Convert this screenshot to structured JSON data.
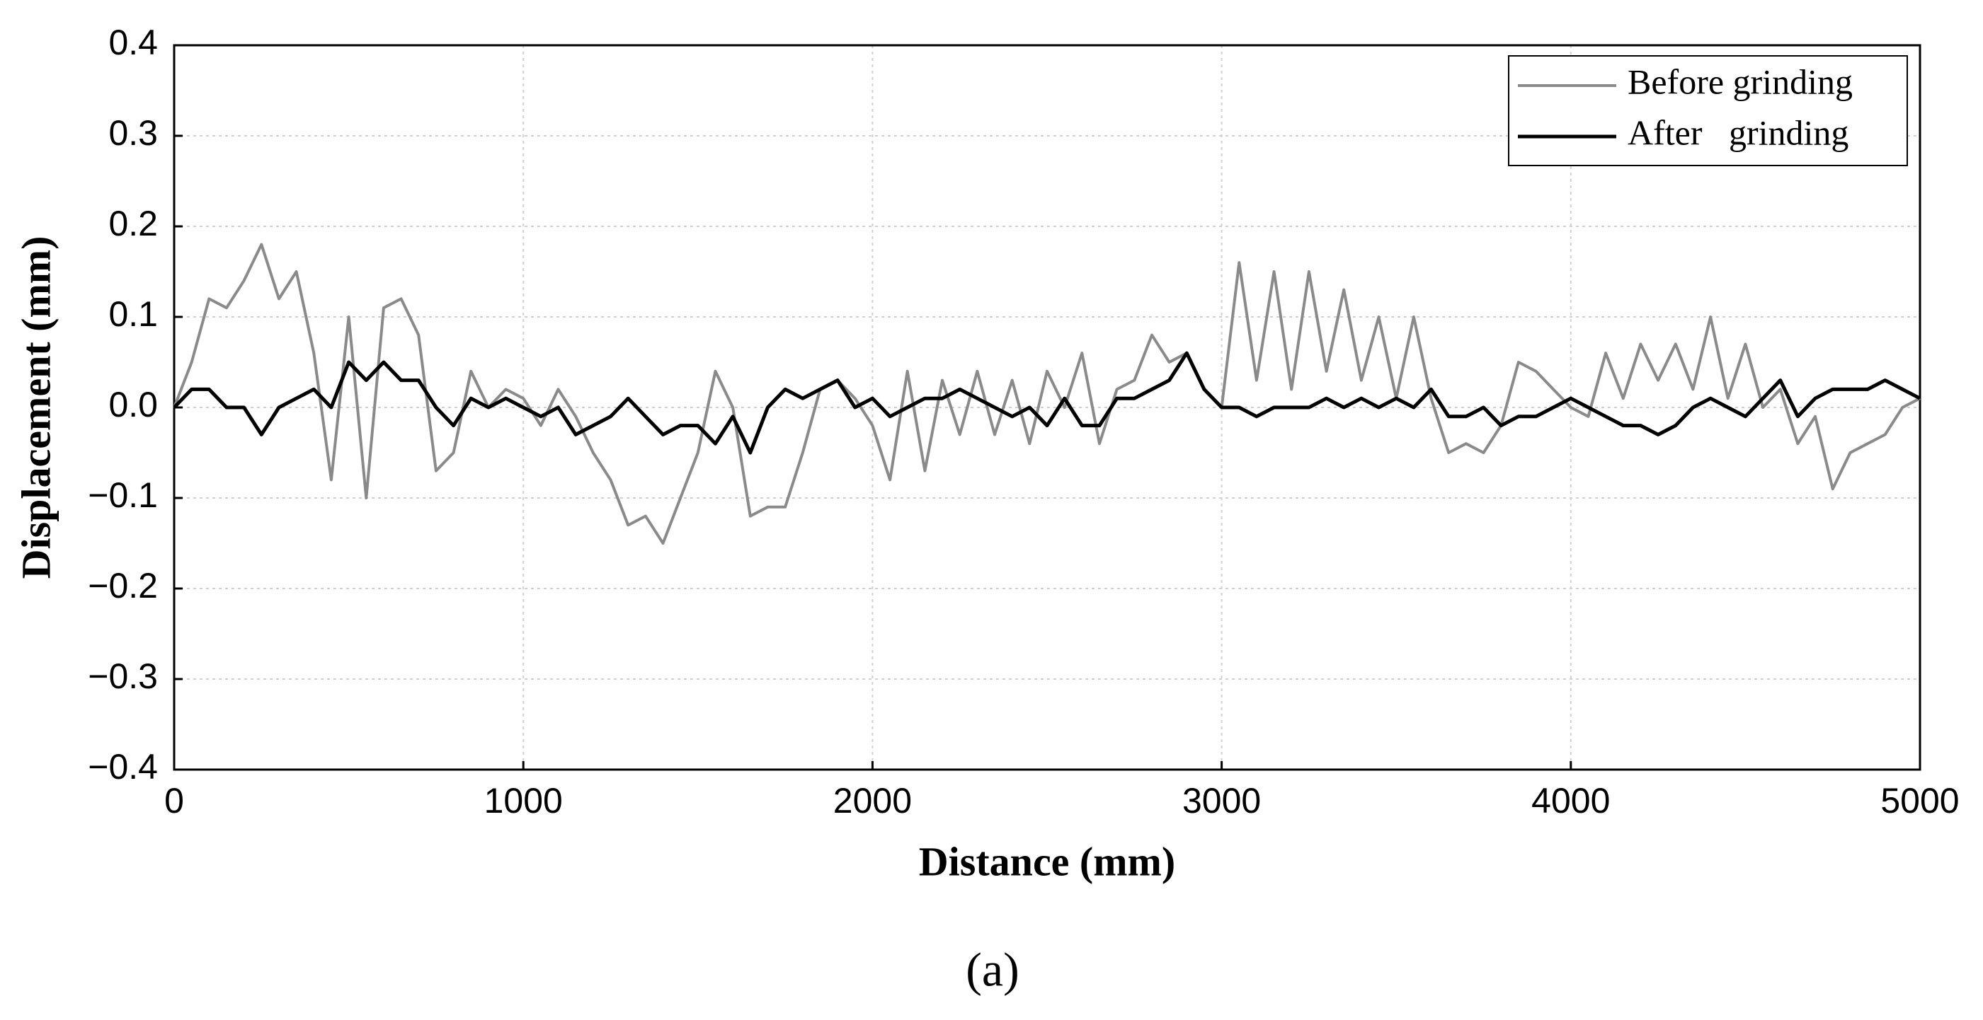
{
  "chart_data": {
    "type": "line",
    "xlabel": "Distance (mm)",
    "ylabel": "Displacement (mm)",
    "caption": "(a)",
    "x": [
      0,
      50,
      100,
      150,
      200,
      250,
      300,
      350,
      400,
      450,
      500,
      550,
      600,
      650,
      700,
      750,
      800,
      850,
      900,
      950,
      1000,
      1050,
      1100,
      1150,
      1200,
      1250,
      1300,
      1350,
      1400,
      1450,
      1500,
      1550,
      1600,
      1650,
      1700,
      1750,
      1800,
      1850,
      1900,
      1950,
      2000,
      2050,
      2100,
      2150,
      2200,
      2250,
      2300,
      2350,
      2400,
      2450,
      2500,
      2550,
      2600,
      2650,
      2700,
      2750,
      2800,
      2850,
      2900,
      2950,
      3000,
      3050,
      3100,
      3150,
      3200,
      3250,
      3300,
      3350,
      3400,
      3450,
      3500,
      3550,
      3600,
      3650,
      3700,
      3750,
      3800,
      3850,
      3900,
      3950,
      4000,
      4050,
      4100,
      4150,
      4200,
      4250,
      4300,
      4350,
      4400,
      4450,
      4500,
      4550,
      4600,
      4650,
      4700,
      4750,
      4800,
      4850,
      4900,
      4950,
      5000
    ],
    "series": [
      {
        "name": "Before grinding",
        "color": "#8a8a8a",
        "width": 4,
        "values": [
          0.0,
          0.05,
          0.12,
          0.11,
          0.14,
          0.18,
          0.12,
          0.15,
          0.06,
          -0.08,
          0.1,
          -0.1,
          0.11,
          0.12,
          0.08,
          -0.07,
          -0.05,
          0.04,
          0.0,
          0.02,
          0.01,
          -0.02,
          0.02,
          -0.01,
          -0.05,
          -0.08,
          -0.13,
          -0.12,
          -0.15,
          -0.1,
          -0.05,
          0.04,
          0.0,
          -0.12,
          -0.11,
          -0.11,
          -0.05,
          0.02,
          0.03,
          0.01,
          -0.02,
          -0.08,
          0.04,
          -0.07,
          0.03,
          -0.03,
          0.04,
          -0.03,
          0.03,
          -0.04,
          0.04,
          0.0,
          0.06,
          -0.04,
          0.02,
          0.03,
          0.08,
          0.05,
          0.06,
          0.02,
          0.0,
          0.16,
          0.03,
          0.15,
          0.02,
          0.15,
          0.04,
          0.13,
          0.03,
          0.1,
          0.01,
          0.1,
          0.01,
          -0.05,
          -0.04,
          -0.05,
          -0.02,
          0.05,
          0.04,
          0.02,
          0.0,
          -0.01,
          0.06,
          0.01,
          0.07,
          0.03,
          0.07,
          0.02,
          0.1,
          0.01,
          0.07,
          0.0,
          0.02,
          -0.04,
          -0.01,
          -0.09,
          -0.05,
          -0.04,
          -0.03,
          0.0,
          0.01
        ]
      },
      {
        "name": "After   grinding",
        "color": "#000000",
        "width": 5,
        "values": [
          0.0,
          0.02,
          0.02,
          0.0,
          0.0,
          -0.03,
          0.0,
          0.01,
          0.02,
          0.0,
          0.05,
          0.03,
          0.05,
          0.03,
          0.03,
          0.0,
          -0.02,
          0.01,
          0.0,
          0.01,
          0.0,
          -0.01,
          0.0,
          -0.03,
          -0.02,
          -0.01,
          0.01,
          -0.01,
          -0.03,
          -0.02,
          -0.02,
          -0.04,
          -0.01,
          -0.05,
          0.0,
          0.02,
          0.01,
          0.02,
          0.03,
          0.0,
          0.01,
          -0.01,
          0.0,
          0.01,
          0.01,
          0.02,
          0.01,
          0.0,
          -0.01,
          0.0,
          -0.02,
          0.01,
          -0.02,
          -0.02,
          0.01,
          0.01,
          0.02,
          0.03,
          0.06,
          0.02,
          0.0,
          0.0,
          -0.01,
          0.0,
          0.0,
          0.0,
          0.01,
          0.0,
          0.01,
          0.0,
          0.01,
          0.0,
          0.02,
          -0.01,
          -0.01,
          0.0,
          -0.02,
          -0.01,
          -0.01,
          0.0,
          0.01,
          0.0,
          -0.01,
          -0.02,
          -0.02,
          -0.03,
          -0.02,
          0.0,
          0.01,
          0.0,
          -0.01,
          0.01,
          0.03,
          -0.01,
          0.01,
          0.02,
          0.02,
          0.02,
          0.03,
          0.02,
          0.01
        ]
      }
    ],
    "xlim": [
      0,
      5000
    ],
    "xticks": [
      0,
      1000,
      2000,
      3000,
      4000,
      5000
    ],
    "ylim": [
      -0.4,
      0.4
    ],
    "yticks": [
      {
        "value": -0.4,
        "label": "−0.4"
      },
      {
        "value": -0.3,
        "label": "−0.3"
      },
      {
        "value": -0.2,
        "label": "−0.2"
      },
      {
        "value": -0.1,
        "label": "−0.1"
      },
      {
        "value": 0,
        "label": "0.0"
      },
      0.1,
      0.2,
      0.3,
      0.4
    ],
    "grid": true,
    "legend": "upper right"
  }
}
